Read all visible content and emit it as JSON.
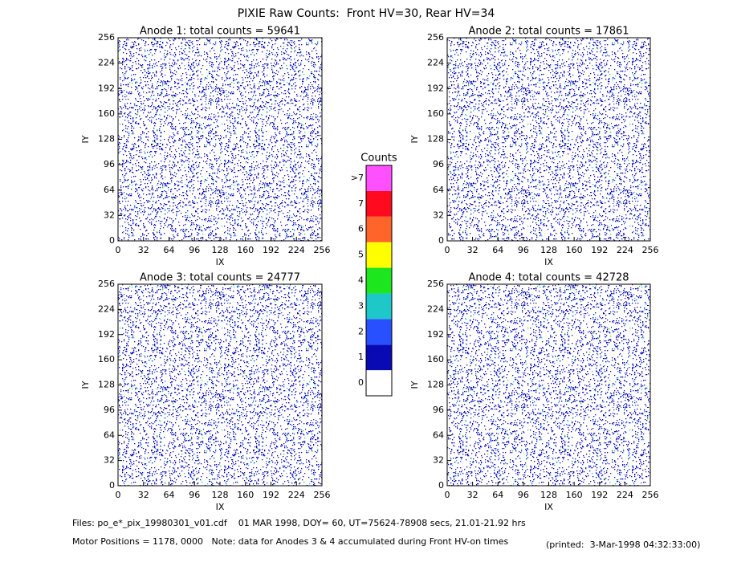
{
  "title": "PIXIE Raw Counts:  Front HV=30, Rear HV=34",
  "chart_data": [
    {
      "type": "heatmap",
      "title": "Anode 1: total counts = 59641",
      "xlabel": "IX",
      "ylabel": "IY",
      "xlim": [
        0,
        256
      ],
      "ylim": [
        0,
        256
      ],
      "xticks": [
        0,
        32,
        64,
        96,
        128,
        160,
        192,
        224,
        256
      ],
      "yticks": [
        0,
        32,
        64,
        96,
        128,
        160,
        192,
        224,
        256
      ]
    },
    {
      "type": "heatmap",
      "title": "Anode 2: total counts = 17861",
      "xlabel": "IX",
      "ylabel": "IY",
      "xlim": [
        0,
        256
      ],
      "ylim": [
        0,
        256
      ],
      "xticks": [
        0,
        32,
        64,
        96,
        128,
        160,
        192,
        224,
        256
      ],
      "yticks": [
        0,
        32,
        64,
        96,
        128,
        160,
        192,
        224,
        256
      ]
    },
    {
      "type": "heatmap",
      "title": "Anode 3: total counts = 24777",
      "xlabel": "IX",
      "ylabel": "IY",
      "xlim": [
        0,
        256
      ],
      "ylim": [
        0,
        256
      ],
      "xticks": [
        0,
        32,
        64,
        96,
        128,
        160,
        192,
        224,
        256
      ],
      "yticks": [
        0,
        32,
        64,
        96,
        128,
        160,
        192,
        224,
        256
      ]
    },
    {
      "type": "heatmap",
      "title": "Anode 4: total counts = 42728",
      "xlabel": "IX",
      "ylabel": "IY",
      "xlim": [
        0,
        256
      ],
      "ylim": [
        0,
        256
      ],
      "xticks": [
        0,
        32,
        64,
        96,
        128,
        160,
        192,
        224,
        256
      ],
      "yticks": [
        0,
        32,
        64,
        96,
        128,
        160,
        192,
        224,
        256
      ]
    }
  ],
  "colorbar": {
    "title": "Counts",
    "levels": [
      {
        "label": "0",
        "color": "#ffffff"
      },
      {
        "label": "1",
        "color": "#0a0ab4"
      },
      {
        "label": "2",
        "color": "#2850ff"
      },
      {
        "label": "3",
        "color": "#1ec8c8"
      },
      {
        "label": "4",
        "color": "#1ee61e"
      },
      {
        "label": "5",
        "color": "#ffff00"
      },
      {
        "label": "6",
        "color": "#ff6428"
      },
      {
        "label": "7",
        "color": "#ff0a1e"
      },
      {
        "label": ">7",
        "color": "#ff50ff"
      }
    ]
  },
  "footer": {
    "files": "Files: po_e*_pix_19980301_v01.cdf    01 MAR 1998, DOY= 60, UT=75624-78908 secs, 21.01-21.92 hrs",
    "motor": "Motor Positions = 1178, 0000   Note: data for Anodes 3 & 4 accumulated during Front HV-on times",
    "printed": "(printed:  3-Mar-1998 04:32:33:00)"
  }
}
